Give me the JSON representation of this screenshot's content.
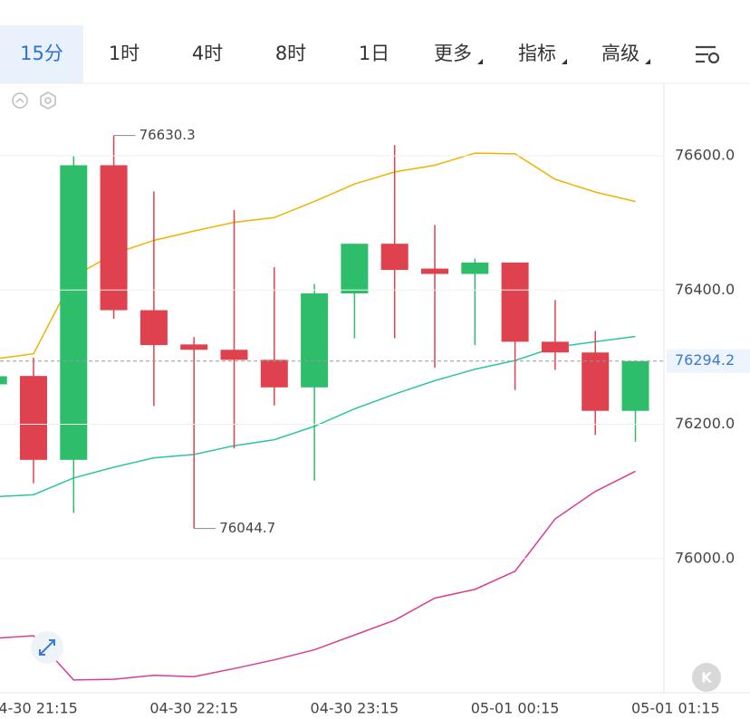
{
  "toolbar": {
    "tabs": [
      "15分",
      "1时",
      "4时",
      "8时",
      "1日",
      "更多",
      "指标",
      "高级"
    ],
    "selected": 0
  },
  "k_button": "K",
  "chart_data": {
    "type": "candlestick",
    "categories": [
      null,
      "04-30 21:15",
      null,
      null,
      null,
      "04-30 22:15",
      null,
      null,
      null,
      "04-30 23:15",
      null,
      null,
      null,
      "05-01 00:15",
      null,
      null,
      null,
      "05-01 01:15"
    ],
    "open": [
      76259.5,
      76272,
      76147,
      76586,
      76370,
      76319,
      76311,
      76296,
      76255,
      76395,
      76469,
      76432,
      76424,
      76441,
      76323,
      76307,
      76220,
      null
    ],
    "high": [
      76271.6,
      76299,
      76600,
      76630.3,
      76547,
      76330,
      76519,
      76434,
      76409,
      76469,
      76616,
      76497,
      76447,
      76441,
      76385,
      76339,
      76294.2,
      null
    ],
    "low": [
      76259.5,
      76112,
      76068,
      76357,
      76227,
      76044.7,
      76164,
      76228,
      76116,
      76328,
      76328,
      76284,
      76318,
      76251,
      76281,
      76184,
      76174,
      null
    ],
    "close": [
      76271.6,
      76147,
      76586,
      76370,
      76318,
      76311,
      76296,
      76255,
      76395,
      76469,
      76430,
      76424,
      76441,
      76323,
      76307,
      76220,
      76294.2,
      null
    ],
    "up_color": "#2ebd6b",
    "down_color": "#e0414f",
    "series": [
      {
        "color": "#efb300",
        "values": [
          76297,
          76305,
          76420,
          76454,
          76474,
          76488,
          76501,
          76508,
          76532,
          76558,
          76576,
          76586,
          76604,
          76603,
          76565,
          76546,
          76532,
          null
        ]
      },
      {
        "color": "#2cc5a0",
        "values": [
          76092,
          76095,
          76120,
          76136,
          76150,
          76155,
          76168,
          76177,
          76197,
          76223,
          76245,
          76265,
          76282,
          76295,
          76315,
          76323,
          76331,
          null
        ]
      },
      {
        "color": "#d93d92",
        "values": [
          75881,
          75885,
          75819,
          75820,
          75826,
          75824,
          75836,
          75849,
          75864,
          75886,
          75908,
          75941,
          75954,
          75981,
          76059,
          76100,
          76130,
          null
        ]
      }
    ],
    "ylim": [
      75800,
      76704
    ],
    "yticks": [
      {
        "value": 76000,
        "label": "76000.0"
      },
      {
        "value": 76200,
        "label": "76200.0"
      },
      {
        "value": 76400,
        "label": "76400.0"
      },
      {
        "value": 76600,
        "label": "76600.0"
      }
    ],
    "grid": true
  }
}
